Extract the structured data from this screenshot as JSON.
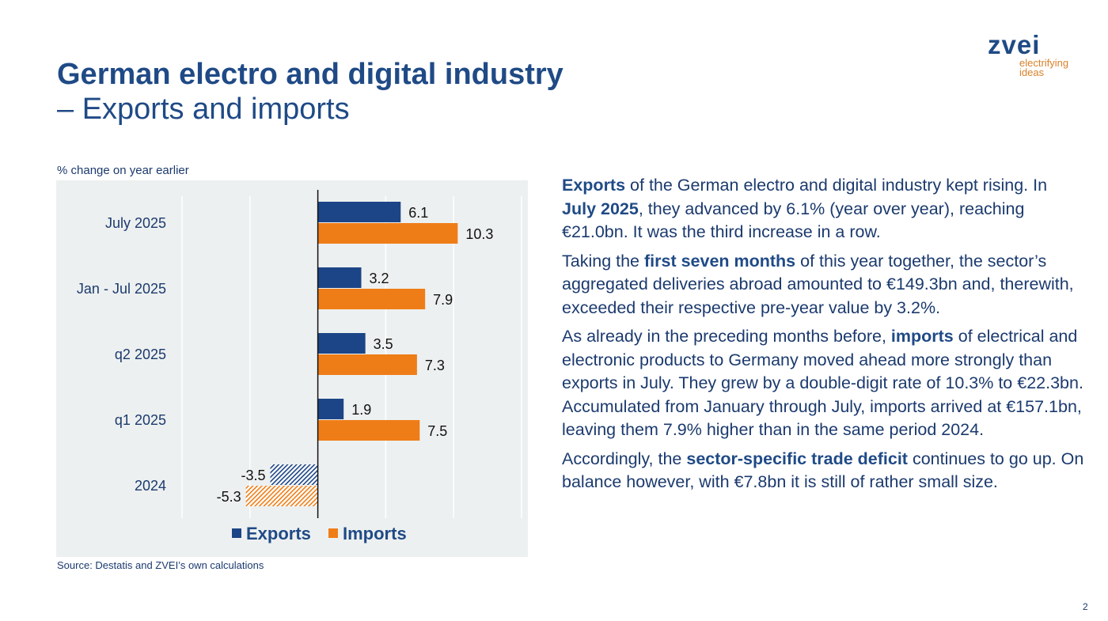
{
  "header": {
    "title": "German electro and digital industry",
    "subtitle": "– Exports and imports"
  },
  "logo": {
    "word": "zvei",
    "tagline_1": "electrifying",
    "tagline_2": "ideas"
  },
  "chart_data": {
    "type": "bar",
    "orientation": "horizontal",
    "unit_label": "% change on year earlier",
    "categories": [
      "July 2025",
      "Jan - Jul 2025",
      "q2 2025",
      "q1 2025",
      "2024"
    ],
    "series": [
      {
        "name": "Exports",
        "color": "#1c4587",
        "values": [
          6.1,
          3.2,
          3.5,
          1.9,
          -3.5
        ]
      },
      {
        "name": "Imports",
        "color": "#ef7d17",
        "values": [
          10.3,
          7.9,
          7.3,
          7.5,
          -5.3
        ]
      }
    ],
    "data_labels": [
      [
        "6.1",
        "3.2",
        "3.5",
        "1.9",
        "-3.5"
      ],
      [
        "10.3",
        "7.9",
        "7.3",
        "7.5",
        "-5.3"
      ]
    ],
    "hatched_categories": [
      "2024"
    ],
    "xlim": [
      -10,
      15
    ],
    "grid_step": 5,
    "grid": true,
    "legend": "bottom",
    "source": "Source: Destatis and ZVEI’s own calculations"
  },
  "text": {
    "paragraphs": [
      [
        {
          "t": "Exports",
          "b": true
        },
        {
          "t": " of the German electro and digital industry kept rising. In "
        },
        {
          "t": "July 2025",
          "b": true
        },
        {
          "t": ", they advanced by 6.1% (year over year), reaching €21.0bn. It was the third increase in a row."
        }
      ],
      [
        {
          "t": "Taking the "
        },
        {
          "t": "first seven months",
          "b": true
        },
        {
          "t": " of this year together, the sector’s aggregated deliveries abroad amounted to €149.3bn and, therewith, exceeded their respective pre-year value by 3.2%."
        }
      ],
      [
        {
          "t": "As already in the preceding months before, "
        },
        {
          "t": "imports",
          "b": true
        },
        {
          "t": " of electrical and electronic products to Germany moved ahead more strongly than exports in July. They grew by a double-digit rate of 10.3% to €22.3bn. Accumulated from January through July, imports arrived at €157.1bn, leaving them 7.9% higher than in the same period 2024."
        }
      ],
      [
        {
          "t": "Accordingly, the "
        },
        {
          "t": "sector-specific trade deficit",
          "b": true
        },
        {
          "t": " continues to go up. On balance however, with €7.8bn it is still of rather small size."
        }
      ]
    ]
  },
  "page_number": "2"
}
